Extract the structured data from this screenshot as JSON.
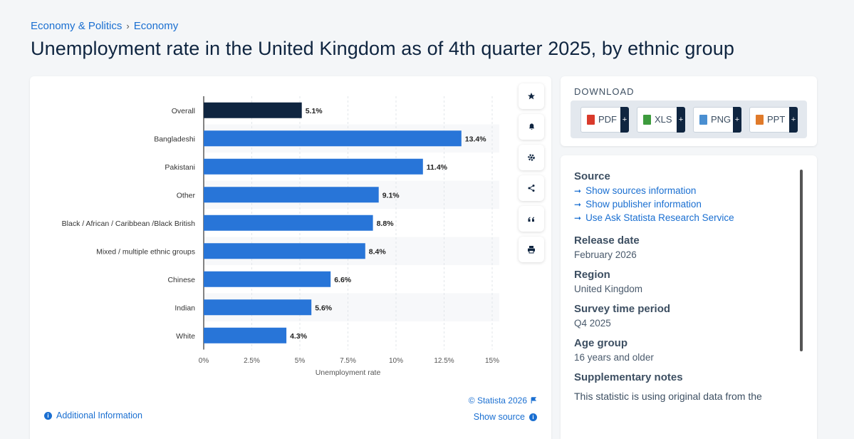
{
  "breadcrumb": {
    "level1": "Economy & Politics",
    "separator": "›",
    "level2": "Economy"
  },
  "page_title": "Unemployment rate in the United Kingdom as of 4th quarter 2025, by ethnic group",
  "chart_data": {
    "type": "bar",
    "orientation": "horizontal",
    "title": "",
    "xlabel": "Unemployment rate",
    "ylabel": "",
    "categories": [
      "Overall",
      "Bangladeshi",
      "Pakistani",
      "Other",
      "Black / African / Caribbean /Black British",
      "Mixed / multiple ethnic groups",
      "Chinese",
      "Indian",
      "White"
    ],
    "values": [
      5.1,
      13.4,
      11.4,
      9.1,
      8.8,
      8.4,
      6.6,
      5.6,
      4.3
    ],
    "value_labels": [
      "5.1%",
      "13.4%",
      "11.4%",
      "9.1%",
      "8.8%",
      "8.4%",
      "6.6%",
      "5.6%",
      "4.3%"
    ],
    "xlim": [
      0,
      15
    ],
    "xticks": [
      0,
      2.5,
      5,
      7.5,
      10,
      12.5,
      15
    ],
    "xtick_labels": [
      "0%",
      "2.5%",
      "5%",
      "7.5%",
      "10%",
      "12.5%",
      "15%"
    ],
    "grid": true,
    "colors": {
      "highlight": "#0f2540",
      "bar": "#2875d8"
    },
    "highlight_index": 0
  },
  "chart_footer": {
    "copyright": "© Statista 2026",
    "additional_info": "Additional Information",
    "show_source": "Show source"
  },
  "tools": [
    "star-icon",
    "bell-icon",
    "gear-icon",
    "share-icon",
    "quote-icon",
    "print-icon"
  ],
  "download": {
    "title": "DOWNLOAD",
    "buttons": [
      {
        "label": "PDF",
        "color": "#d93a2b"
      },
      {
        "label": "XLS",
        "color": "#3d9b3d"
      },
      {
        "label": "PNG",
        "color": "#4a8fd1"
      },
      {
        "label": "PPT",
        "color": "#e07a2a"
      }
    ],
    "plus": "+"
  },
  "meta": {
    "source_heading": "Source",
    "links": [
      "Show sources information",
      "Show publisher information",
      "Use Ask Statista Research Service"
    ],
    "release_heading": "Release date",
    "release_value": "February 2026",
    "region_heading": "Region",
    "region_value": "United Kingdom",
    "survey_heading": "Survey time period",
    "survey_value": "Q4 2025",
    "age_heading": "Age group",
    "age_value": "16 years and older",
    "notes_heading": "Supplementary notes",
    "notes_value": "This statistic is using original data from the"
  }
}
